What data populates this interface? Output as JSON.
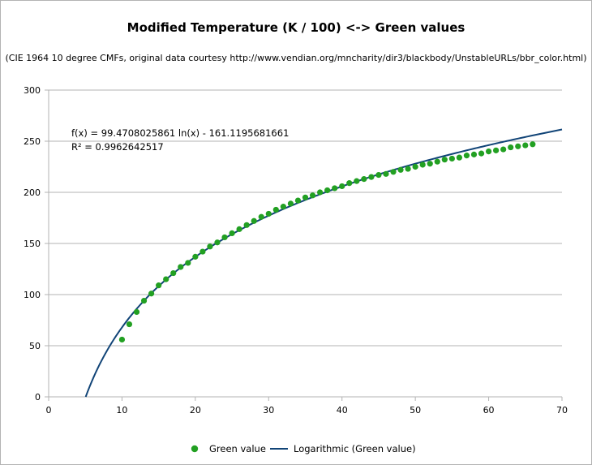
{
  "chart_data": {
    "type": "scatter",
    "title": "Modified Temperature (K / 100) <-> Green values",
    "subtitle": "(CIE 1964 10 degree CMFs, original data courtesy http://www.vendian.org/mncharity/dir3/blackbody/UnstableURLs/bbr_color.html)",
    "xlim": [
      0,
      70
    ],
    "ylim": [
      0,
      300
    ],
    "x_ticks": [
      0,
      10,
      20,
      30,
      40,
      50,
      60,
      70
    ],
    "y_ticks": [
      0,
      50,
      100,
      150,
      200,
      250,
      300
    ],
    "grid": "horizontal",
    "legend_position": "bottom",
    "series": [
      {
        "name": "Green value",
        "kind": "points",
        "color": "#22a022",
        "x": [
          10,
          11,
          12,
          13,
          14,
          15,
          16,
          17,
          18,
          19,
          20,
          21,
          22,
          23,
          24,
          25,
          26,
          27,
          28,
          29,
          30,
          31,
          32,
          33,
          34,
          35,
          36,
          37,
          38,
          39,
          40,
          41,
          42,
          43,
          44,
          45,
          46,
          47,
          48,
          49,
          50,
          51,
          52,
          53,
          54,
          55,
          56,
          57,
          58,
          59,
          60,
          61,
          62,
          63,
          64,
          65,
          66
        ],
        "y": [
          56,
          71,
          83,
          94,
          101,
          109,
          115,
          121,
          127,
          131,
          137,
          142,
          147,
          151,
          156,
          160,
          164,
          168,
          172,
          176,
          179,
          183,
          186,
          189,
          192,
          195,
          197,
          200,
          202,
          204,
          206,
          209,
          211,
          213,
          215,
          217,
          218,
          220,
          222,
          223,
          225,
          227,
          228,
          230,
          232,
          233,
          234,
          236,
          237,
          238,
          240,
          241,
          242,
          244,
          245,
          246,
          247
        ]
      },
      {
        "name": "Logarithmic (Green value)",
        "kind": "trendline",
        "color": "#114477",
        "a": 99.4708025861,
        "b": -161.1195681661
      }
    ],
    "annotation_equation": "f(x) = 99.4708025861 ln(x) - 161.1195681661",
    "annotation_r2": "R² = 0.9962642517"
  }
}
